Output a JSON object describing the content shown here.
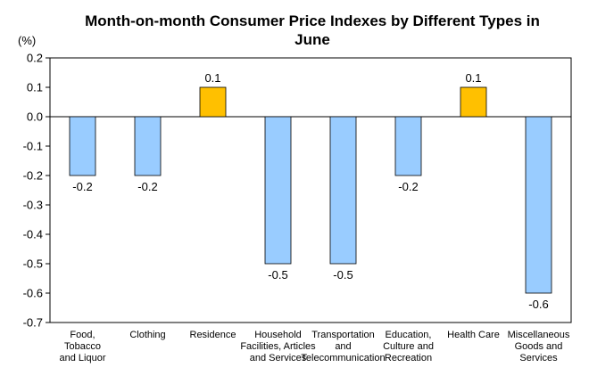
{
  "chart_data": {
    "type": "bar",
    "title_lines": [
      "Month-on-month Consumer Price Indexes by Different Types in",
      "June"
    ],
    "unit_label": "(%)",
    "ylim": [
      -0.7,
      0.2
    ],
    "yticks": [
      "0.2",
      "0.1",
      "0.0",
      "-0.1",
      "-0.2",
      "-0.3",
      "-0.4",
      "-0.5",
      "-0.6",
      "-0.7"
    ],
    "ytick_values": [
      0.2,
      0.1,
      0.0,
      -0.1,
      -0.2,
      -0.3,
      -0.4,
      -0.5,
      -0.6,
      -0.7
    ],
    "grid": false,
    "categories": [
      [
        "Food,",
        "Tobacco",
        "and Liquor"
      ],
      [
        "Clothing"
      ],
      [
        "Residence"
      ],
      [
        "Household",
        "Facilities, Articles",
        "and Services"
      ],
      [
        "Transportation",
        "and",
        "Telecommunication"
      ],
      [
        "Education,",
        "Culture and",
        "Recreation"
      ],
      [
        "Health Care"
      ],
      [
        "Miscellaneous",
        "Goods and",
        "Services"
      ]
    ],
    "values": [
      -0.2,
      -0.2,
      0.1,
      -0.5,
      -0.5,
      -0.2,
      0.1,
      -0.6
    ],
    "value_labels": [
      "-0.2",
      "-0.2",
      "0.1",
      "-0.5",
      "-0.5",
      "-0.2",
      "0.1",
      "-0.6"
    ],
    "colors": {
      "negative": "#99CCFF",
      "positive": "#FFC000",
      "border": "#000000",
      "axis": "#000000"
    }
  }
}
